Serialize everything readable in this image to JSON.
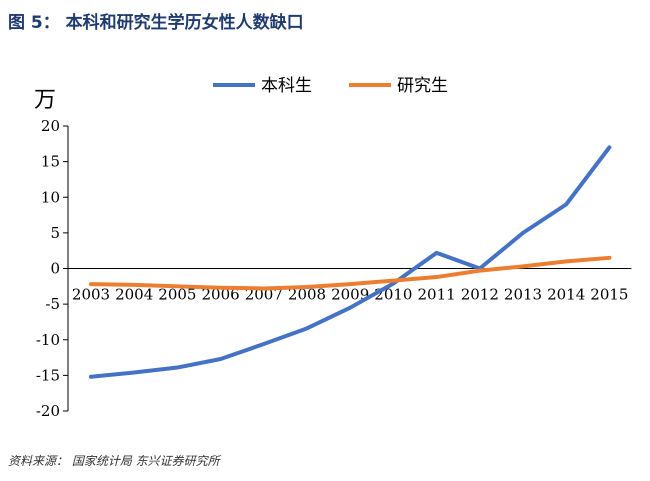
{
  "header": {
    "title": "图 5： 本科和研究生学历女性人数缺口"
  },
  "footer": {
    "source": "资料来源： 国家统计局  东兴证券研究所"
  },
  "chart_data": {
    "type": "line",
    "x": [
      "2003",
      "2004",
      "2005",
      "2006",
      "2007",
      "2008",
      "2009",
      "2010",
      "2011",
      "2012",
      "2013",
      "2014",
      "2015"
    ],
    "series": [
      {
        "name": "本科生",
        "color": "#4472c4",
        "values": [
          -15.2,
          -14.6,
          -13.9,
          -12.7,
          -10.6,
          -8.4,
          -5.5,
          -2.1,
          2.2,
          0.0,
          5.0,
          9.0,
          17.0
        ]
      },
      {
        "name": "研究生",
        "color": "#ed7d31",
        "values": [
          -2.2,
          -2.3,
          -2.5,
          -2.7,
          -2.8,
          -2.6,
          -2.2,
          -1.7,
          -1.2,
          -0.3,
          0.3,
          1.0,
          1.5
        ]
      }
    ],
    "ylabel": "万",
    "ylim": [
      -20,
      20
    ],
    "yticks": [
      20,
      15,
      10,
      5,
      0,
      -5,
      -10,
      -15,
      -20
    ],
    "legend": "top-center",
    "grid": false
  }
}
